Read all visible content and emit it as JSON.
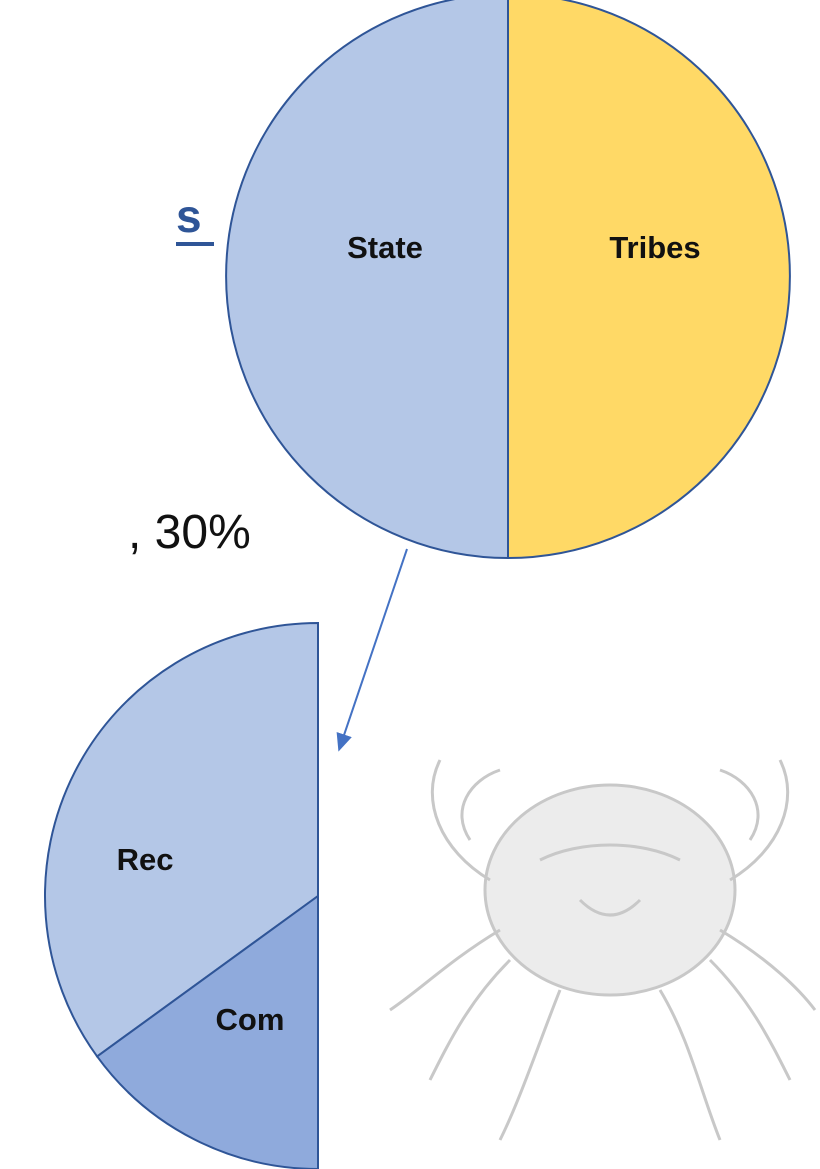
{
  "texts": {
    "heading": "s",
    "line": ", 30%"
  },
  "chart_data": [
    {
      "type": "pie",
      "categories": [
        "State",
        "Tribes"
      ],
      "values": [
        50,
        50
      ],
      "colors": [
        "#b4c7e7",
        "#ffd966"
      ]
    },
    {
      "type": "pie",
      "categories": [
        "Rec",
        "Com"
      ],
      "values": [
        70,
        30
      ],
      "colors": [
        "#b4c7e7",
        "#8faadc"
      ]
    }
  ]
}
